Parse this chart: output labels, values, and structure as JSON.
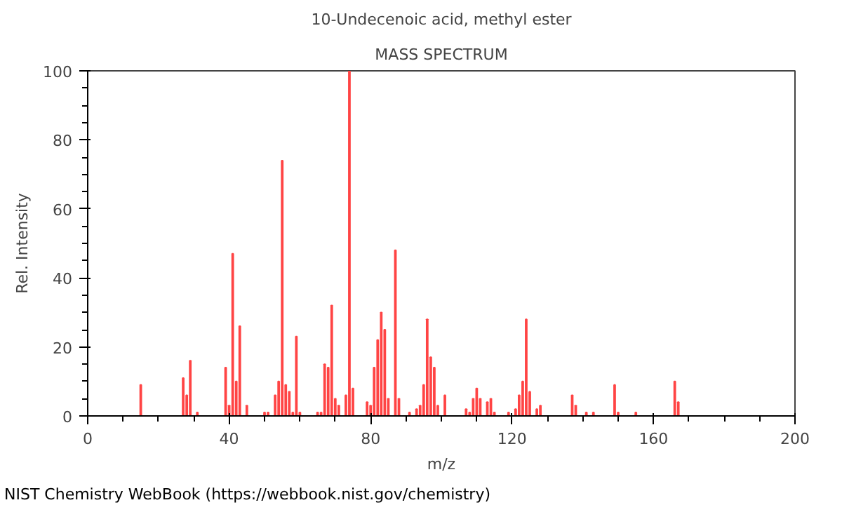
{
  "chart_data": {
    "type": "bar",
    "title": "10-Undecenoic acid, methyl ester",
    "subtitle": "MASS SPECTRUM",
    "xlabel": "m/z",
    "ylabel": "Rel. Intensity",
    "x": [
      15,
      27,
      28,
      29,
      31,
      39,
      40,
      41,
      42,
      43,
      45,
      50,
      51,
      53,
      54,
      55,
      56,
      57,
      58,
      59,
      60,
      65,
      66,
      67,
      68,
      69,
      70,
      71,
      73,
      74,
      75,
      79,
      80,
      81,
      82,
      83,
      84,
      85,
      87,
      88,
      91,
      93,
      94,
      95,
      96,
      97,
      98,
      99,
      101,
      107,
      108,
      109,
      110,
      111,
      113,
      114,
      115,
      119,
      121,
      122,
      123,
      124,
      125,
      127,
      128,
      137,
      138,
      141,
      143,
      149,
      150,
      155,
      166,
      167
    ],
    "values": [
      9,
      11,
      6,
      16,
      1,
      14,
      3,
      47,
      10,
      26,
      3,
      1,
      1,
      6,
      10,
      74,
      9,
      7,
      1,
      23,
      1,
      1,
      1,
      15,
      14,
      32,
      5,
      3,
      6,
      100,
      8,
      4,
      3,
      14,
      22,
      30,
      25,
      5,
      48,
      5,
      1,
      2,
      3,
      9,
      28,
      17,
      14,
      3,
      6,
      2,
      1,
      5,
      8,
      5,
      4,
      5,
      1,
      1,
      2,
      6,
      10,
      28,
      7,
      2,
      3,
      6,
      3,
      1,
      1,
      9,
      1,
      1,
      10,
      4
    ],
    "color": "#ff4444",
    "xlim": [
      0,
      200
    ],
    "ylim": [
      0,
      100
    ],
    "xticks": [
      0,
      40,
      80,
      120,
      160,
      200
    ],
    "yticks": [
      0,
      20,
      40,
      60,
      80,
      100
    ],
    "grid": false,
    "annotations": [
      "NIST Chemistry WebBook (https://webbook.nist.gov/chemistry)"
    ]
  }
}
